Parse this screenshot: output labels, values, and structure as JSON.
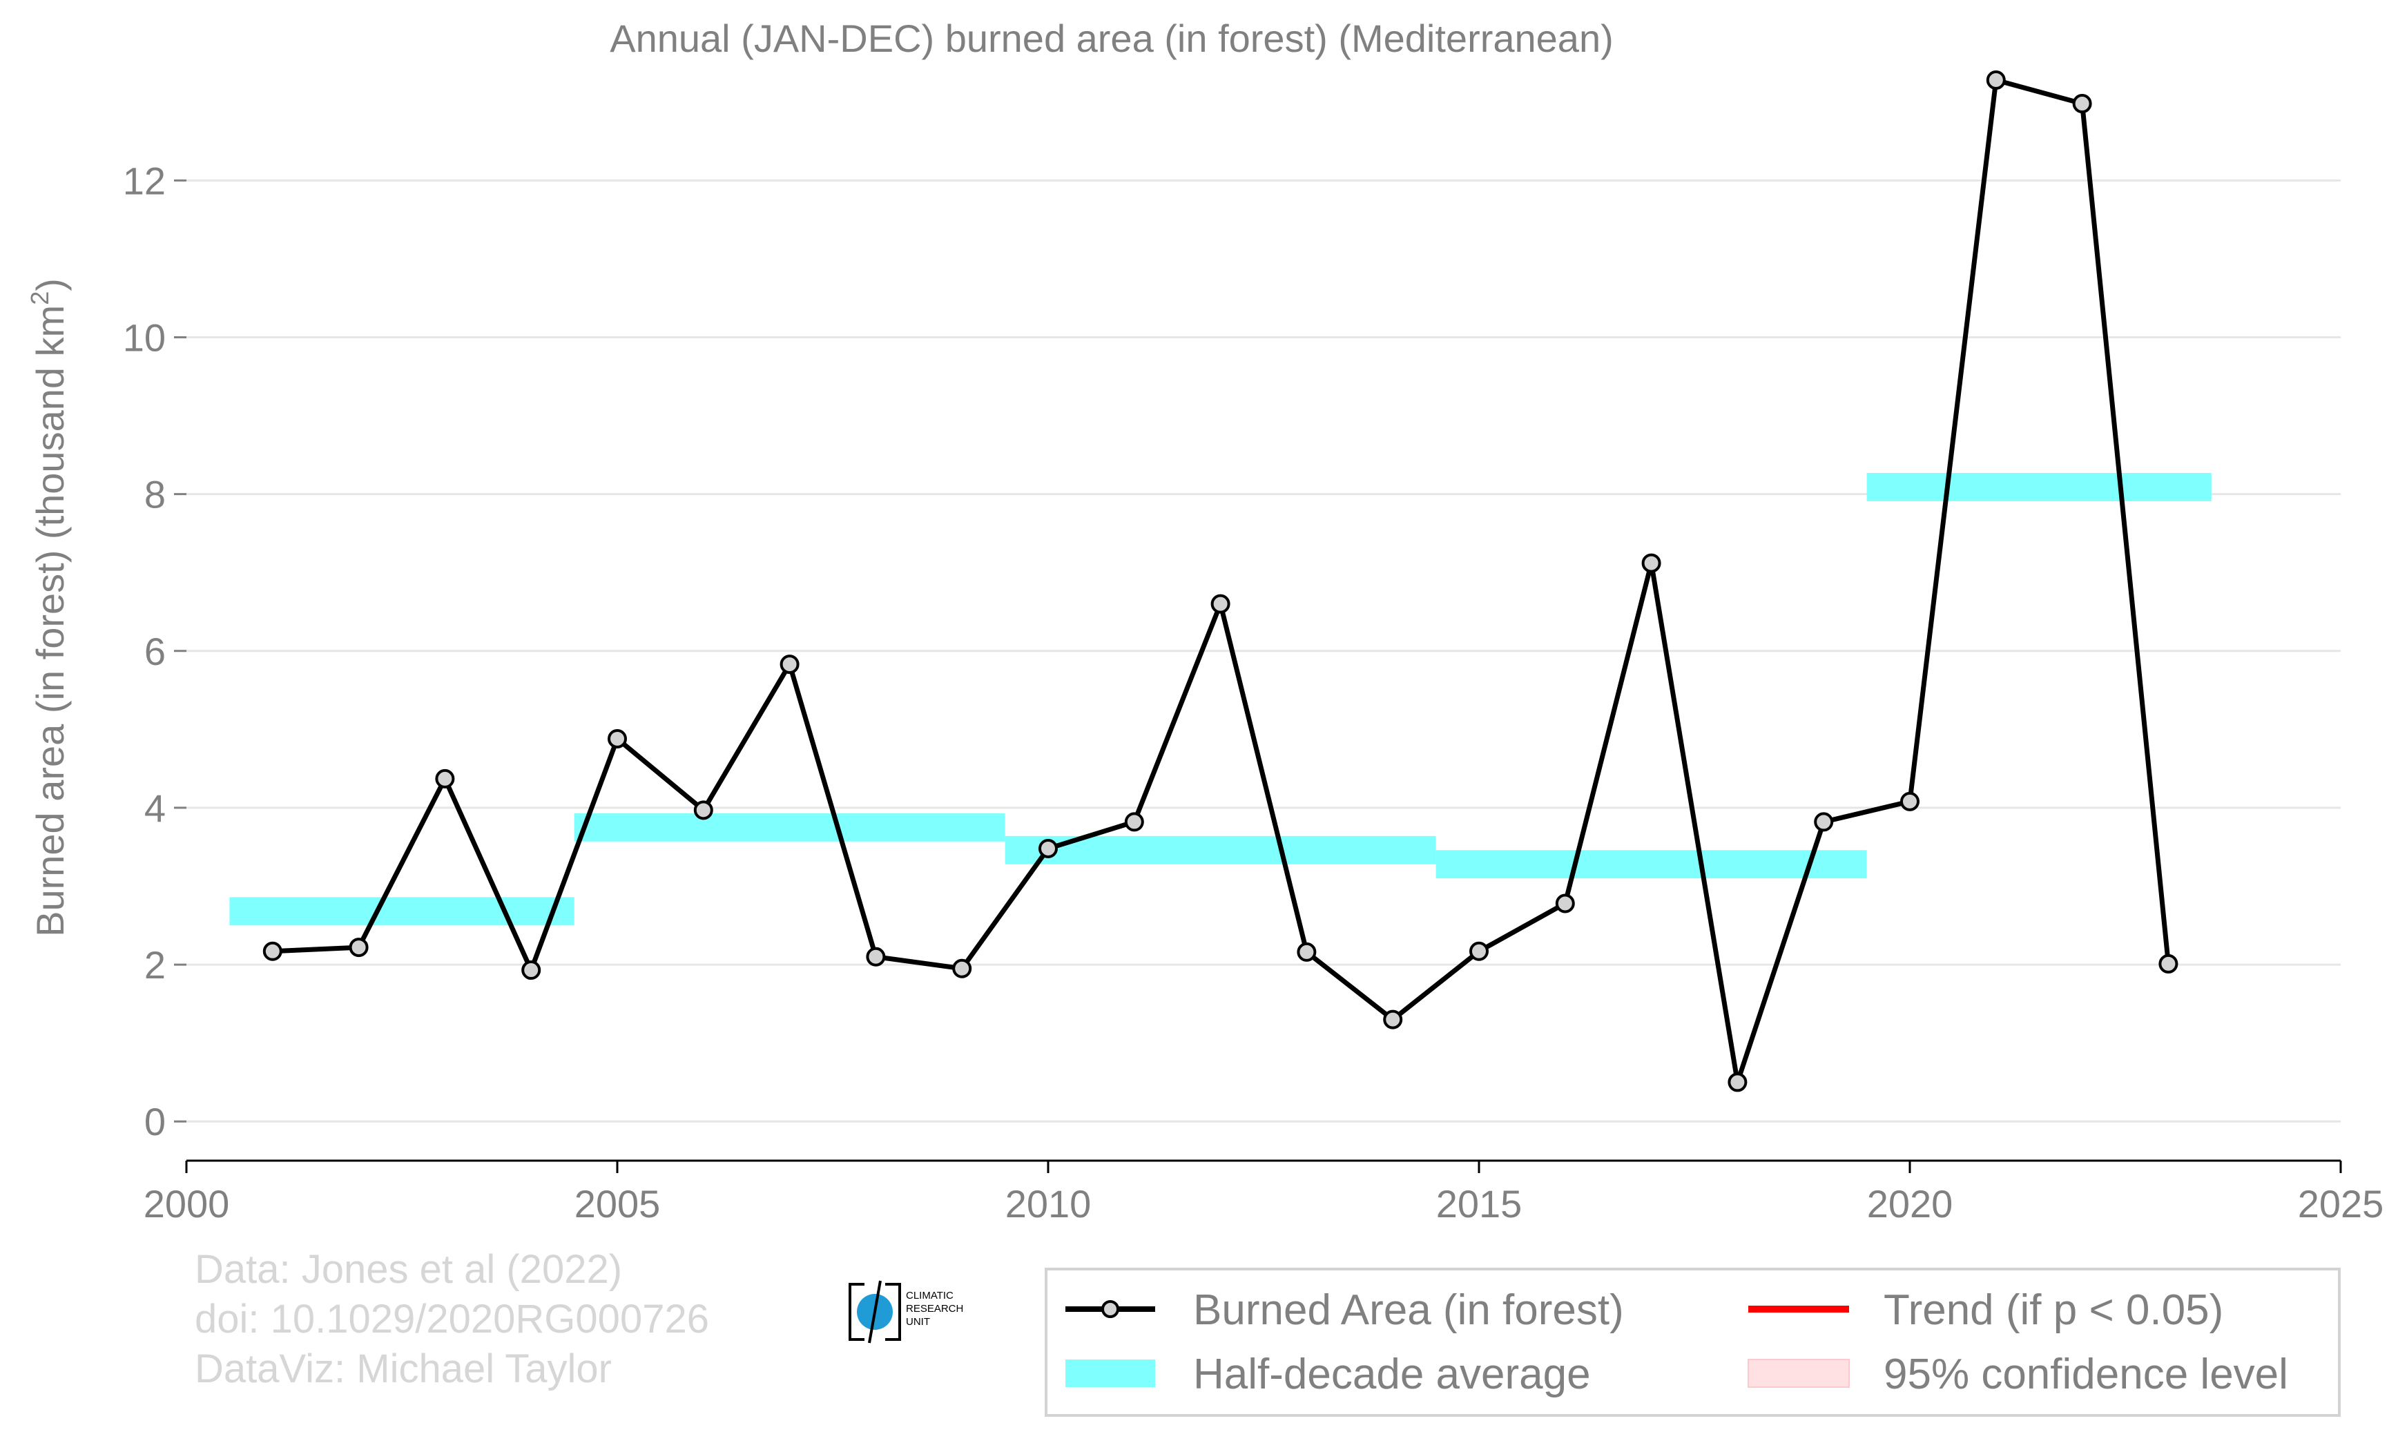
{
  "chart_data": {
    "type": "line",
    "title": "Annual (JAN-DEC) burned area (in forest) (Mediterranean)",
    "ylabel_main": "Burned area (in forest) (thousand km",
    "ylabel_sup": "2",
    "ylabel_end": ")",
    "xlabel": "",
    "xlim": [
      2000,
      2025
    ],
    "ylim": [
      -0.5,
      13.5
    ],
    "xticks": [
      2000,
      2005,
      2010,
      2015,
      2020,
      2025
    ],
    "yticks": [
      0,
      2,
      4,
      6,
      8,
      10,
      12
    ],
    "grid": true,
    "series": [
      {
        "name": "Burned Area (in forest)",
        "color": "#000000",
        "x": [
          2001,
          2002,
          2003,
          2004,
          2005,
          2006,
          2007,
          2008,
          2009,
          2010,
          2011,
          2012,
          2013,
          2014,
          2015,
          2016,
          2017,
          2018,
          2019,
          2020,
          2021,
          2022,
          2023
        ],
        "y": [
          2.17,
          2.22,
          4.37,
          1.93,
          4.88,
          3.97,
          5.83,
          2.1,
          1.95,
          3.48,
          3.82,
          6.6,
          2.16,
          1.3,
          2.17,
          2.78,
          7.12,
          0.5,
          3.82,
          4.08,
          13.28,
          12.98,
          2.01
        ]
      }
    ],
    "half_decade_average": {
      "name": "Half-decade average",
      "color": "#80ffff",
      "segments": [
        {
          "x0": 2000.5,
          "x1": 2004.5,
          "value": 2.68
        },
        {
          "x0": 2004.5,
          "x1": 2009.5,
          "value": 3.75
        },
        {
          "x0": 2009.5,
          "x1": 2014.5,
          "value": 3.46
        },
        {
          "x0": 2014.5,
          "x1": 2019.5,
          "value": 3.28
        },
        {
          "x0": 2019.5,
          "x1": 2023.5,
          "value": 8.09
        }
      ]
    },
    "legend": {
      "placement": "bottom-right",
      "items": [
        {
          "label": "Burned Area (in forest)",
          "kind": "line-marker",
          "color": "#000000"
        },
        {
          "label": "Trend (if p < 0.05)",
          "kind": "line",
          "color": "#ff0000"
        },
        {
          "label": "Half-decade average",
          "kind": "band",
          "color": "#80ffff"
        },
        {
          "label": "95% confidence level",
          "kind": "band",
          "color": "#ffe0e3"
        }
      ]
    }
  },
  "credits": {
    "line1": "Data: Jones et al (2022)",
    "line2": "doi: 10.1029/2020RG000726",
    "line3": "DataViz: Michael Taylor"
  },
  "logo": {
    "line1": "CLIMATIC",
    "line2": "RESEARCH",
    "line3": "UNIT"
  }
}
